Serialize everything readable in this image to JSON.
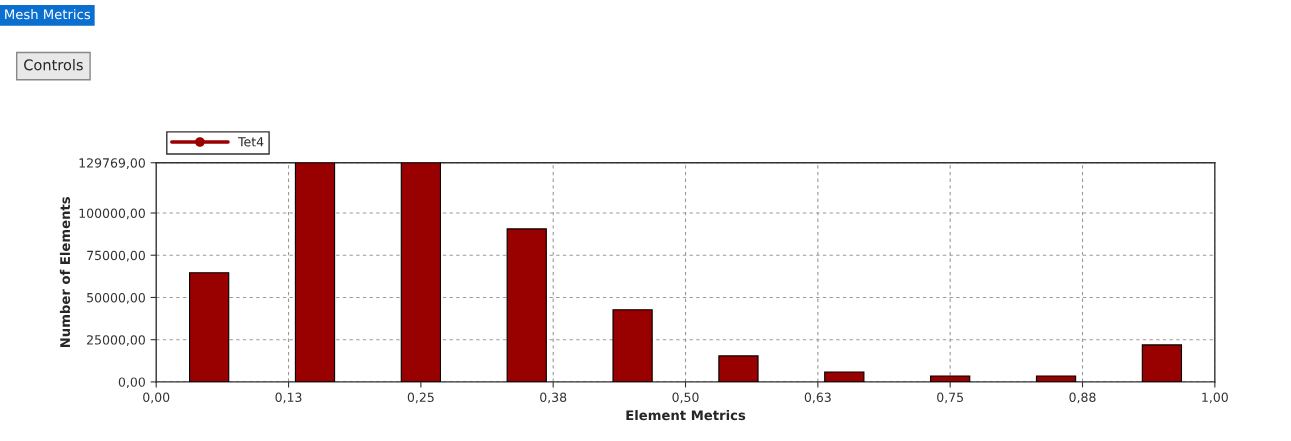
{
  "chart_data": {
    "type": "bar",
    "title": "Mesh Metrics",
    "annotations": [
      "Controls"
    ],
    "xlabel": "Element Metrics",
    "ylabel": "Number of Elements",
    "x": [
      0.05,
      0.15,
      0.25,
      0.35,
      0.45,
      0.55,
      0.65,
      0.75,
      0.85,
      0.95
    ],
    "series": [
      {
        "name": "Tet4",
        "color": "#990000",
        "values": [
          64600,
          129769,
          129769,
          90600,
          42700,
          15400,
          5900,
          3500,
          3500,
          21900
        ]
      }
    ],
    "xlim": [
      0,
      1
    ],
    "xticks": [
      {
        "value": 0,
        "label": "0,00"
      },
      {
        "value": 0.125,
        "label": "0,13"
      },
      {
        "value": 0.25,
        "label": "0,25"
      },
      {
        "value": 0.375,
        "label": "0,38"
      },
      {
        "value": 0.5,
        "label": "0,50"
      },
      {
        "value": 0.625,
        "label": "0,63"
      },
      {
        "value": 0.75,
        "label": "0,75"
      },
      {
        "value": 0.875,
        "label": "0,88"
      },
      {
        "value": 1,
        "label": "1,00"
      }
    ],
    "ylim": [
      0,
      129769
    ],
    "yticks": [
      {
        "value": 0,
        "label": "0,00"
      },
      {
        "value": 25000,
        "label": "25000,00"
      },
      {
        "value": 50000,
        "label": "50000,00"
      },
      {
        "value": 75000,
        "label": "75000,00"
      },
      {
        "value": 100000,
        "label": "100000,00"
      },
      {
        "value": 129769,
        "label": "129769,00"
      }
    ],
    "grid": true,
    "legend": "top left",
    "marker": "circle"
  }
}
